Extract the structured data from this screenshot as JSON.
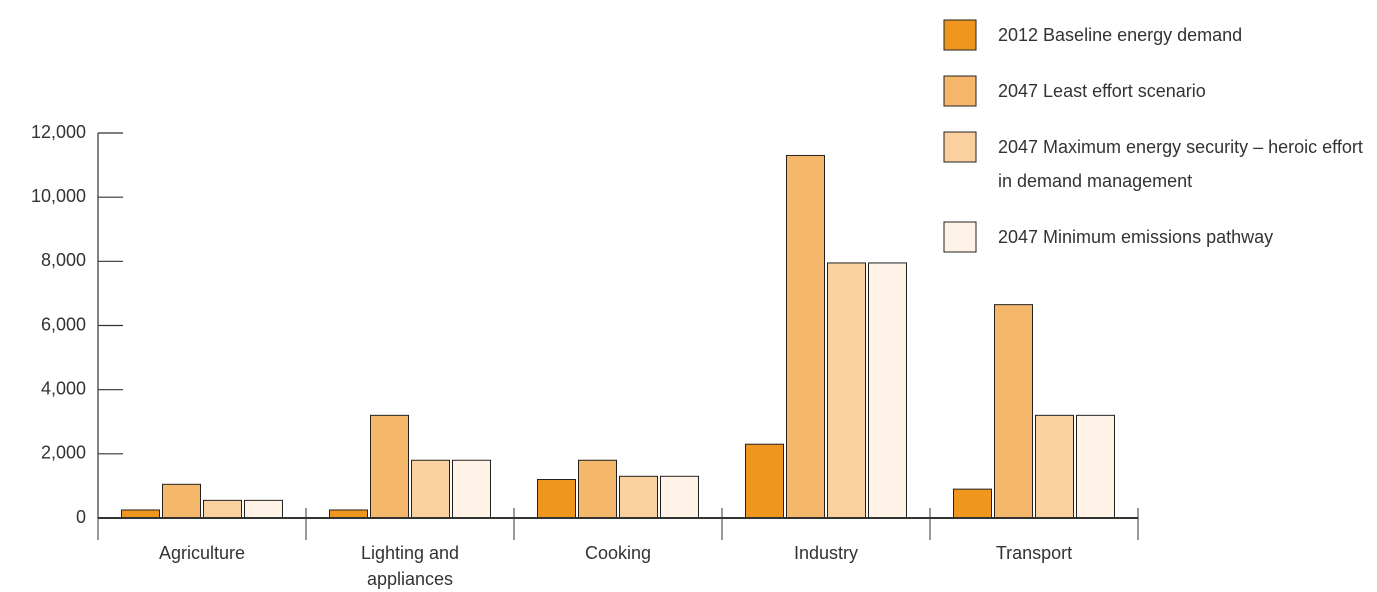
{
  "chart_data": {
    "type": "bar",
    "categories": [
      "Agriculture",
      "Lighting and appliances",
      "Cooking",
      "Industry",
      "Transport"
    ],
    "series": [
      {
        "name": "2012 Baseline energy demand",
        "color": "#f0961e",
        "values": [
          250,
          250,
          1200,
          2300,
          900
        ]
      },
      {
        "name": "2047 Least effort scenario",
        "color": "#f5b76a",
        "values": [
          1050,
          3200,
          1800,
          11300,
          6650
        ]
      },
      {
        "name": "2047 Maximum energy security – heroic effort in demand management",
        "color": "#fad09e",
        "values": [
          550,
          1800,
          1300,
          7950,
          3200
        ]
      },
      {
        "name": "2047 Minimum emissions pathway",
        "color": "#fef3e6",
        "values": [
          550,
          1800,
          1300,
          7950,
          3200
        ]
      }
    ],
    "ylim": [
      0,
      12000
    ],
    "yticks": [
      0,
      {
        "value": 2000,
        "label": "2,000"
      },
      {
        "value": 4000,
        "label": "4,000"
      },
      {
        "value": 6000,
        "label": "6,000"
      },
      {
        "value": 8000,
        "label": "8,000"
      },
      {
        "value": 10000,
        "label": "10,000"
      },
      {
        "value": 12000,
        "label": "12,000"
      }
    ],
    "legend": "top-right"
  }
}
